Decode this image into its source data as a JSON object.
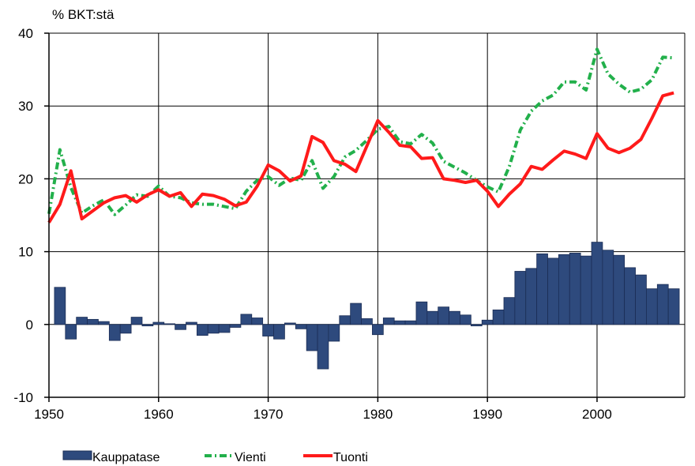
{
  "chart_data": {
    "type": "bar+line",
    "y_unit_label": "% BKT:stä",
    "xlim": [
      1950,
      2008
    ],
    "ylim": [
      -10,
      40
    ],
    "x_ticks": [
      1950,
      1960,
      1970,
      1980,
      1990,
      2000
    ],
    "y_ticks": [
      -10,
      0,
      10,
      20,
      30,
      40
    ],
    "grid": true,
    "legend_position": "bottom",
    "colors": {
      "bar": "#2e4a7d",
      "bar_edge": "#1b2d55",
      "vienti": "#22b04b",
      "tuonti": "#ff1a1a"
    },
    "years": [
      1950,
      1951,
      1952,
      1953,
      1954,
      1955,
      1956,
      1957,
      1958,
      1959,
      1960,
      1961,
      1962,
      1963,
      1964,
      1965,
      1966,
      1967,
      1968,
      1969,
      1970,
      1971,
      1972,
      1973,
      1974,
      1975,
      1976,
      1977,
      1978,
      1979,
      1980,
      1981,
      1982,
      1983,
      1984,
      1985,
      1986,
      1987,
      1988,
      1989,
      1990,
      1991,
      1992,
      1993,
      1994,
      1995,
      1996,
      1997,
      1998,
      1999,
      2000,
      2001,
      2002,
      2003,
      2004,
      2005,
      2006,
      2007
    ],
    "series": [
      {
        "name": "Kauppatase",
        "kind": "bar",
        "values": [
          0,
          5.1,
          -2.0,
          1.0,
          0.7,
          0.4,
          -2.2,
          -1.2,
          1.0,
          -0.2,
          0.3,
          0.1,
          -0.7,
          0.3,
          -1.5,
          -1.2,
          -1.1,
          -0.4,
          1.4,
          0.9,
          -1.6,
          -2.0,
          0.2,
          -0.6,
          -3.6,
          -6.1,
          -2.3,
          1.2,
          2.9,
          0.8,
          -1.4,
          0.9,
          0.5,
          0.5,
          3.1,
          1.8,
          2.4,
          1.8,
          1.3,
          -0.2,
          0.6,
          2.0,
          3.7,
          7.3,
          7.7,
          9.7,
          9.1,
          9.6,
          9.8,
          9.4,
          11.3,
          10.2,
          9.5,
          7.8,
          6.8,
          4.9,
          5.5,
          4.9
        ]
      },
      {
        "name": "Vienti",
        "kind": "line",
        "values": [
          15.2,
          24.0,
          18.8,
          15.3,
          16.3,
          17.1,
          15.1,
          16.4,
          17.8,
          17.6,
          19.0,
          17.6,
          17.4,
          16.7,
          16.5,
          16.5,
          16.2,
          15.9,
          18.3,
          19.8,
          20.3,
          19.1,
          20.1,
          19.8,
          22.5,
          18.7,
          20.3,
          23.0,
          23.9,
          25.3,
          26.8,
          27.2,
          25.1,
          24.8,
          26.1,
          24.9,
          22.4,
          21.6,
          20.8,
          19.8,
          18.9,
          18.2,
          21.7,
          26.7,
          29.3,
          30.7,
          31.5,
          33.3,
          33.3,
          32.2,
          37.8,
          34.4,
          33.0,
          31.9,
          32.3,
          33.6,
          36.7,
          36.6
        ]
      },
      {
        "name": "Tuonti",
        "kind": "line",
        "values": [
          14.0,
          16.5,
          21.1,
          14.5,
          15.6,
          16.7,
          17.4,
          17.7,
          16.8,
          17.8,
          18.5,
          17.6,
          18.1,
          16.2,
          17.9,
          17.7,
          17.2,
          16.3,
          16.8,
          19.0,
          21.9,
          21.1,
          19.7,
          20.4,
          25.8,
          25.0,
          22.5,
          22.0,
          21.0,
          24.5,
          28.0,
          26.4,
          24.6,
          24.4,
          22.8,
          22.9,
          20.0,
          19.8,
          19.5,
          19.8,
          18.3,
          16.2,
          17.9,
          19.3,
          21.7,
          21.3,
          22.6,
          23.8,
          23.4,
          22.8,
          26.2,
          24.2,
          23.6,
          24.2,
          25.4,
          28.3,
          31.4,
          31.8
        ]
      }
    ]
  }
}
